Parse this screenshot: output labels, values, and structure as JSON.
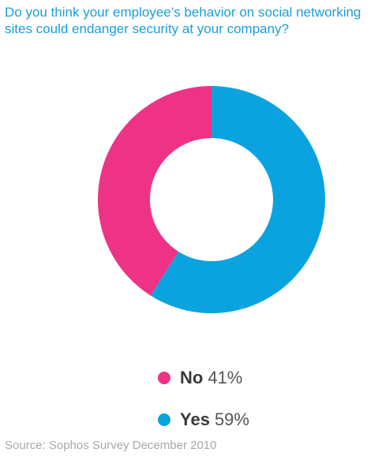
{
  "title": "Do you think your employee’s behavior on social networking sites could endanger security at your company?",
  "source": "Source: Sophos Survey December 2010",
  "chart_data": {
    "type": "pie",
    "title": "Do you think your employee’s behavior on social networking sites could endanger security at your company?",
    "slices": [
      {
        "label": "Yes",
        "value": 59,
        "value_text": "59%",
        "color": "#0aa3e0"
      },
      {
        "label": "No",
        "value": 41,
        "value_text": "41%",
        "color": "#ee3387"
      }
    ],
    "legend": [
      {
        "label": "No",
        "value_text": "41%",
        "color": "#ee3387"
      },
      {
        "label": "Yes",
        "value_text": "59%",
        "color": "#0aa3e0"
      }
    ],
    "legend_placement": "bottom"
  }
}
